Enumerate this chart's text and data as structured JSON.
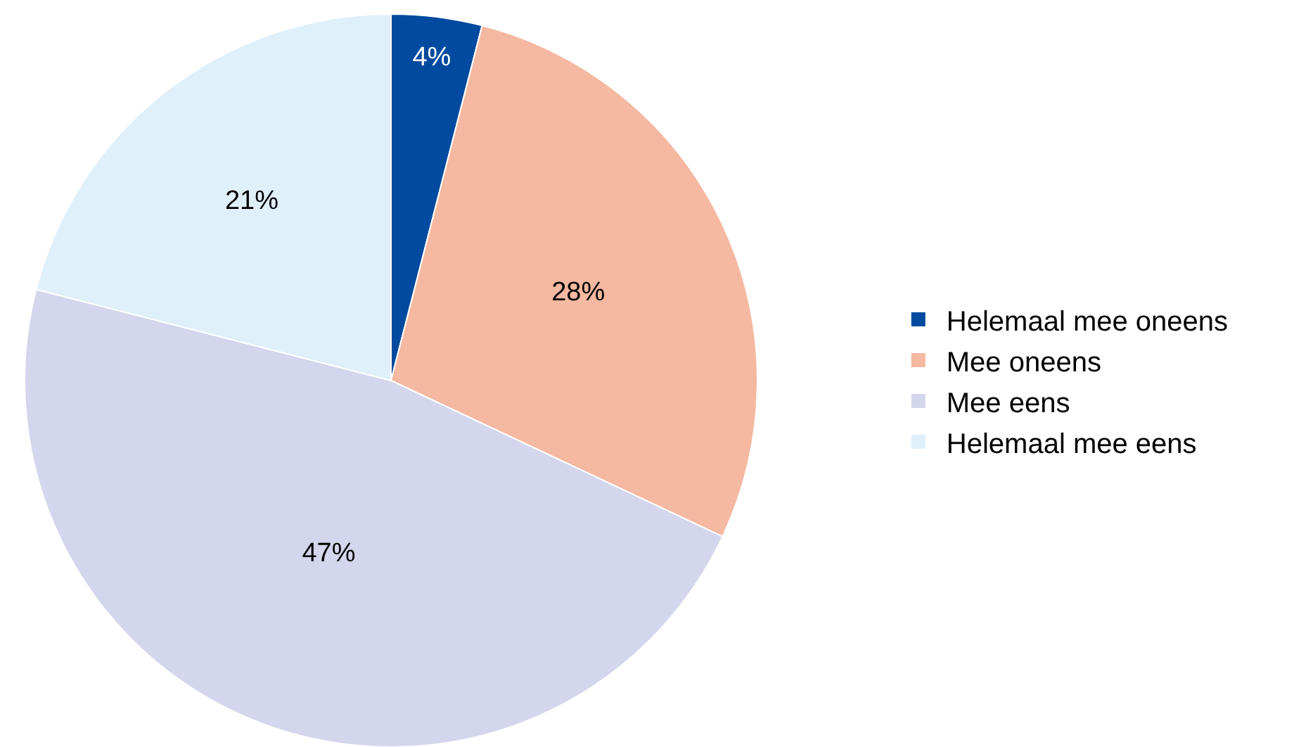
{
  "chart_data": {
    "type": "pie",
    "categories": [
      "Helemaal mee oneens",
      "Mee oneens",
      "Mee eens",
      "Helemaal mee eens"
    ],
    "values": [
      4,
      28,
      47,
      21
    ],
    "colors": [
      "#004a9f",
      "#f5b8a0",
      "#d3d6ec",
      "#dff0fb"
    ],
    "value_labels": [
      "4%",
      "28%",
      "47%",
      "21%"
    ],
    "legend": "right"
  }
}
